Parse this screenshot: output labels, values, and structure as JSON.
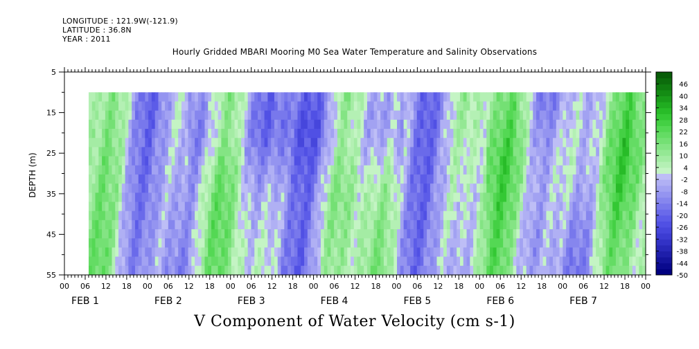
{
  "meta": {
    "longitude": "LONGITUDE : 121.9W(-121.9)",
    "latitude": "LATITUDE : 36.8N",
    "year": "YEAR : 2011"
  },
  "chart_data": {
    "type": "heatmap",
    "title": "Hourly Gridded MBARI Mooring M0 Sea Water Temperature and Salinity Observations",
    "xlabel": "V Component of Water Velocity (cm s-1)",
    "ylabel": "DEPTH (m)",
    "ylim": [
      55,
      5
    ],
    "yticks": [
      5,
      15,
      25,
      35,
      45,
      55
    ],
    "data_depth_range": [
      10,
      55
    ],
    "x_hour_ticks": [
      "00",
      "06",
      "12",
      "18",
      "00",
      "06",
      "12",
      "18",
      "00",
      "06",
      "12",
      "18",
      "00",
      "06",
      "12",
      "18",
      "00",
      "06",
      "12",
      "18",
      "00",
      "06",
      "12",
      "18",
      "00",
      "06",
      "12",
      "18",
      "00"
    ],
    "x_day_labels": [
      "FEB  1",
      "FEB  2",
      "FEB  3",
      "FEB  4",
      "FEB  5",
      "FEB  6",
      "FEB  7"
    ],
    "x_range_hours": [
      0,
      168
    ],
    "data_start_hour": 7,
    "colorbar": {
      "levels": [
        -50,
        -44,
        -38,
        -32,
        -26,
        -20,
        -14,
        -8,
        -2,
        4,
        10,
        16,
        22,
        28,
        34,
        40,
        46
      ],
      "min": -50,
      "max": 52,
      "step": 3,
      "colors_negative": [
        "#000080",
        "#0a0a8e",
        "#14149c",
        "#1e1eaa",
        "#2828b8",
        "#3232c6",
        "#3c3cd2",
        "#4646dc",
        "#5050e4",
        "#5c5ce8",
        "#6a6aea",
        "#7878ec",
        "#8686ee",
        "#9494f0",
        "#a2a2f2",
        "#b0b0f4",
        "#bebef6"
      ],
      "colors_positive": [
        "#c4f4c4",
        "#b4f0b4",
        "#a4eca4",
        "#94e894",
        "#84e484",
        "#74e074",
        "#64dc64",
        "#54d854",
        "#44d044",
        "#34c834",
        "#28bc28",
        "#20ac20",
        "#1a9c1a",
        "#148c14",
        "#107c10",
        "#0c6c0c",
        "#085c08"
      ]
    },
    "grid": false,
    "legend_placement": "right"
  }
}
